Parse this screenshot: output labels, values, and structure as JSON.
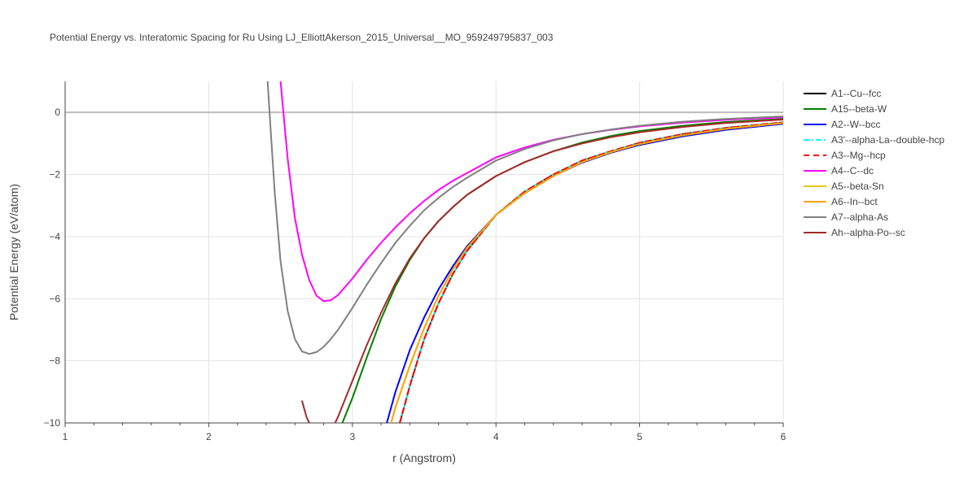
{
  "chart_data": {
    "type": "line",
    "title": "Potential Energy vs. Interatomic Spacing for Ru Using LJ_ElliottAkerson_2015_Universal__MO_959249795837_003",
    "xlabel": "r (Angstrom)",
    "ylabel": "Potential Energy (eV/atom)",
    "xlim": [
      1,
      6
    ],
    "ylim": [
      -10,
      1
    ],
    "xticks": [
      1,
      2,
      3,
      4,
      5,
      6
    ],
    "yticks": [
      0,
      -2,
      -4,
      -6,
      -8,
      -10
    ],
    "ytick_labels": [
      "0",
      "−2",
      "−4",
      "−6",
      "−8",
      "−10"
    ],
    "grid": true,
    "legend_position": "right",
    "series": [
      {
        "name": "A1--Cu--fcc",
        "color": "#000000",
        "dash": "solid",
        "x": [
          3.33,
          3.36,
          3.4,
          3.5,
          3.6,
          3.7,
          3.8,
          4.0,
          4.2,
          4.4,
          4.6,
          4.8,
          5.0,
          5.3,
          5.6,
          6.0
        ],
        "y": [
          -10.0,
          -9.5,
          -8.8,
          -7.3,
          -6.15,
          -5.2,
          -4.45,
          -3.3,
          -2.55,
          -2.0,
          -1.55,
          -1.25,
          -0.98,
          -0.7,
          -0.5,
          -0.32
        ]
      },
      {
        "name": "A15--beta-W",
        "color": "#008000",
        "dash": "solid",
        "x": [
          2.93,
          3.0,
          3.1,
          3.2,
          3.3,
          3.4,
          3.5,
          3.6,
          3.7,
          3.8,
          4.0,
          4.2,
          4.4,
          4.6,
          4.8,
          5.0,
          5.3,
          5.6,
          6.0
        ],
        "y": [
          -10.0,
          -9.2,
          -7.9,
          -6.65,
          -5.6,
          -4.75,
          -4.05,
          -3.5,
          -3.05,
          -2.65,
          -2.05,
          -1.6,
          -1.25,
          -0.97,
          -0.76,
          -0.6,
          -0.43,
          -0.31,
          -0.21
        ]
      },
      {
        "name": "A2--W--bcc",
        "color": "#0000ff",
        "dash": "solid",
        "x": [
          3.24,
          3.3,
          3.4,
          3.5,
          3.6,
          3.7,
          3.8,
          4.0,
          4.2,
          4.4,
          4.6,
          4.8,
          5.0,
          5.3,
          5.6,
          6.0
        ],
        "y": [
          -10.0,
          -9.0,
          -7.65,
          -6.6,
          -5.7,
          -4.95,
          -4.3,
          -3.3,
          -2.6,
          -2.05,
          -1.62,
          -1.3,
          -1.05,
          -0.77,
          -0.56,
          -0.37
        ]
      },
      {
        "name": "A3'--alpha-La--double-hcp",
        "color": "#00ffff",
        "dash": "dashdot",
        "x": [
          3.33,
          3.36,
          3.4,
          3.5,
          3.6,
          3.7,
          3.8,
          4.0,
          4.2,
          4.4,
          4.6,
          4.8,
          5.0,
          5.3,
          5.6,
          6.0
        ],
        "y": [
          -10.0,
          -9.5,
          -8.8,
          -7.3,
          -6.15,
          -5.2,
          -4.45,
          -3.3,
          -2.55,
          -2.0,
          -1.55,
          -1.25,
          -0.98,
          -0.7,
          -0.5,
          -0.32
        ]
      },
      {
        "name": "A3--Mg--hcp",
        "color": "#ff0000",
        "dash": "dash",
        "x": [
          3.33,
          3.36,
          3.4,
          3.5,
          3.6,
          3.7,
          3.8,
          4.0,
          4.2,
          4.4,
          4.6,
          4.8,
          5.0,
          5.3,
          5.6,
          6.0
        ],
        "y": [
          -10.0,
          -9.5,
          -8.8,
          -7.3,
          -6.15,
          -5.2,
          -4.45,
          -3.3,
          -2.55,
          -2.0,
          -1.55,
          -1.25,
          -0.98,
          -0.7,
          -0.5,
          -0.32
        ]
      },
      {
        "name": "A4--C--dc",
        "color": "#ff00ff",
        "dash": "solid",
        "x": [
          2.5,
          2.52,
          2.55,
          2.6,
          2.65,
          2.7,
          2.75,
          2.8,
          2.85,
          2.9,
          3.0,
          3.1,
          3.2,
          3.3,
          3.4,
          3.5,
          3.6,
          3.7,
          3.8,
          4.0,
          4.2,
          4.4,
          4.6,
          4.8,
          5.0,
          5.3,
          5.6,
          6.0
        ],
        "y": [
          1.0,
          0.0,
          -1.5,
          -3.4,
          -4.6,
          -5.4,
          -5.9,
          -6.08,
          -6.05,
          -5.88,
          -5.35,
          -4.75,
          -4.2,
          -3.7,
          -3.25,
          -2.85,
          -2.5,
          -2.2,
          -1.95,
          -1.45,
          -1.13,
          -0.88,
          -0.7,
          -0.56,
          -0.45,
          -0.33,
          -0.24,
          -0.16
        ]
      },
      {
        "name": "A5--beta-Sn",
        "color": "#e6c619",
        "dash": "solid",
        "x": [
          3.27,
          3.3,
          3.4,
          3.5,
          3.6,
          3.7,
          3.8,
          4.0,
          4.2,
          4.4,
          4.6,
          4.8,
          5.0,
          5.3,
          5.6,
          6.0
        ],
        "y": [
          -10.0,
          -9.5,
          -8.15,
          -6.95,
          -5.9,
          -5.05,
          -4.35,
          -3.3,
          -2.6,
          -2.05,
          -1.6,
          -1.28,
          -1.02,
          -0.74,
          -0.53,
          -0.34
        ]
      },
      {
        "name": "A6--In--bct",
        "color": "#ffa500",
        "dash": "solid",
        "x": [
          3.27,
          3.3,
          3.4,
          3.5,
          3.6,
          3.7,
          3.8,
          4.0,
          4.2,
          4.4,
          4.6,
          4.8,
          5.0,
          5.3,
          5.6,
          6.0
        ],
        "y": [
          -10.0,
          -9.5,
          -8.15,
          -6.95,
          -5.9,
          -5.05,
          -4.35,
          -3.3,
          -2.6,
          -2.05,
          -1.6,
          -1.28,
          -1.02,
          -0.74,
          -0.53,
          -0.34
        ]
      },
      {
        "name": "A7--alpha-As",
        "color": "#808080",
        "dash": "solid",
        "x": [
          2.41,
          2.43,
          2.46,
          2.5,
          2.55,
          2.6,
          2.65,
          2.7,
          2.75,
          2.8,
          2.85,
          2.9,
          3.0,
          3.1,
          3.2,
          3.3,
          3.4,
          3.5,
          3.6,
          3.7,
          3.8,
          4.0,
          4.2,
          4.4,
          4.6,
          4.8,
          5.0,
          5.3,
          5.6,
          6.0
        ],
        "y": [
          1.0,
          -0.5,
          -2.6,
          -4.8,
          -6.4,
          -7.3,
          -7.7,
          -7.78,
          -7.72,
          -7.55,
          -7.3,
          -7.0,
          -6.3,
          -5.55,
          -4.85,
          -4.2,
          -3.65,
          -3.15,
          -2.75,
          -2.4,
          -2.1,
          -1.55,
          -1.18,
          -0.9,
          -0.7,
          -0.55,
          -0.43,
          -0.3,
          -0.21,
          -0.13
        ]
      },
      {
        "name": "Ah--alpha-Po--sc",
        "color": "#a52a2a",
        "dash": "solid",
        "x": [
          2.65,
          2.68,
          2.7,
          2.72,
          2.88,
          2.9,
          3.0,
          3.1,
          3.2,
          3.3,
          3.4,
          3.5,
          3.6,
          3.7,
          3.8,
          4.0,
          4.2,
          4.4,
          4.6,
          4.8,
          5.0,
          5.3,
          5.6,
          6.0
        ],
        "y": [
          -9.3,
          -9.8,
          -10.0,
          null,
          -10.0,
          -9.8,
          -8.65,
          -7.5,
          -6.45,
          -5.5,
          -4.7,
          -4.05,
          -3.5,
          -3.05,
          -2.65,
          -2.05,
          -1.6,
          -1.25,
          -1.0,
          -0.8,
          -0.64,
          -0.47,
          -0.34,
          -0.23
        ]
      }
    ]
  }
}
